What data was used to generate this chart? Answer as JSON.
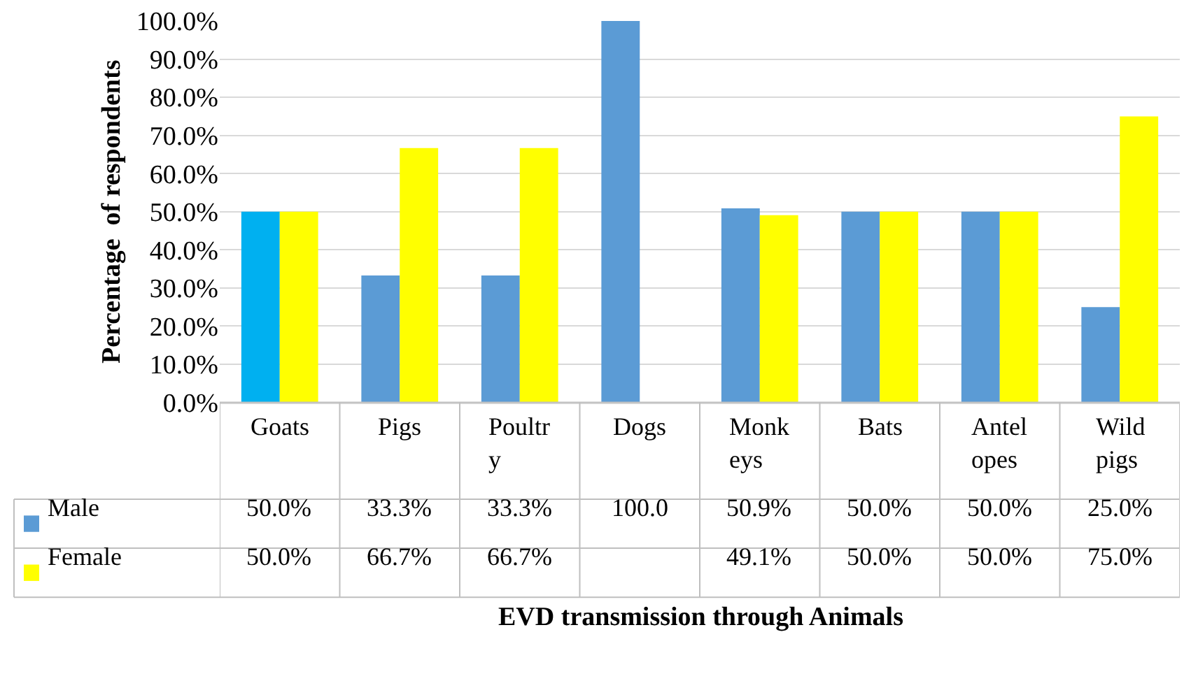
{
  "chart_data": {
    "type": "bar",
    "xlabel": "EVD transmission through Animals",
    "ylabel": "Percentage  of respondents",
    "categories": [
      "Goats",
      "Pigs",
      "Poultr\ny",
      "Dogs",
      "Monk\neys",
      "Bats",
      "Antel\nopes",
      "Wild\npigs"
    ],
    "series": [
      {
        "name": "Male",
        "color": "#5b9bd5",
        "colors": [
          "#00b0f0",
          "#5b9bd5",
          "#5b9bd5",
          "#5b9bd5",
          "#5b9bd5",
          "#5b9bd5",
          "#5b9bd5",
          "#5b9bd5"
        ],
        "values": [
          50.0,
          33.3,
          33.3,
          100.0,
          50.9,
          50.0,
          50.0,
          25.0
        ],
        "value_labels": [
          "50.0%",
          "33.3%",
          "33.3%",
          "100.0",
          "50.9%",
          "50.0%",
          "50.0%",
          "25.0%"
        ]
      },
      {
        "name": "Female",
        "color": "#ffff00",
        "values": [
          50.0,
          66.7,
          66.7,
          null,
          49.1,
          50.0,
          50.0,
          75.0
        ],
        "value_labels": [
          "50.0%",
          "66.7%",
          "66.7%",
          null,
          "49.1%",
          "50.0%",
          "50.0%",
          "75.0%"
        ]
      }
    ],
    "ylim": [
      0,
      100
    ],
    "yticks": [
      {
        "value": 0,
        "label": "0.0%"
      },
      {
        "value": 10,
        "label": "10.0%"
      },
      {
        "value": 20,
        "label": "20.0%"
      },
      {
        "value": 30,
        "label": "30.0%"
      },
      {
        "value": 40,
        "label": "40.0%"
      },
      {
        "value": 50,
        "label": "50.0%"
      },
      {
        "value": 60,
        "label": "60.0%"
      },
      {
        "value": 70,
        "label": "70.0%"
      },
      {
        "value": 80,
        "label": "80.0%"
      },
      {
        "value": 90,
        "label": "90.0%"
      },
      {
        "value": 100,
        "label": "100.0%"
      }
    ],
    "grid": "y",
    "legend": "bottom left"
  }
}
